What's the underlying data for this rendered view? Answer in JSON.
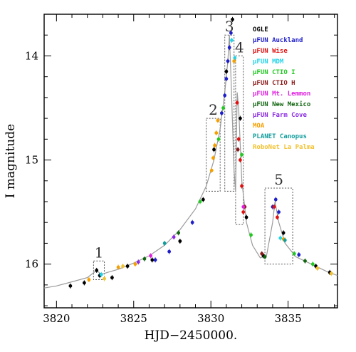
{
  "chart_data": {
    "type": "scatter",
    "title": "",
    "xlabel": "HJD−2450000.",
    "ylabel": "I magnitude",
    "xlim": [
      3819.2,
      3838.2
    ],
    "ylim": [
      16.42,
      13.6
    ],
    "y_inverted": true,
    "x_ticks": [
      3820,
      3825,
      3830,
      3835
    ],
    "y_ticks": [
      14,
      15,
      16
    ],
    "grid": false,
    "legend_position": "top-right",
    "legend": [
      {
        "name": "OGLE",
        "prefix": "",
        "color": "#000000"
      },
      {
        "name": "Auckland",
        "prefix": "μFUN ",
        "color": "#1f1fc8"
      },
      {
        "name": "Wise",
        "prefix": "μFUN ",
        "color": "#e01010"
      },
      {
        "name": "MDM",
        "prefix": "μFUN ",
        "color": "#22d3e8"
      },
      {
        "name": "CTIO I",
        "prefix": "μFUN ",
        "color": "#22c922"
      },
      {
        "name": "CTIO H",
        "prefix": "μFUN ",
        "color": "#8b1a1a"
      },
      {
        "name": "Mt. Lemmon",
        "prefix": "μFUN ",
        "color": "#e020e0"
      },
      {
        "name": "New Mexico",
        "prefix": "μFUN ",
        "color": "#116611"
      },
      {
        "name": "Farm Cove",
        "prefix": "μFUN ",
        "color": "#8a2be2"
      },
      {
        "name": "MOA",
        "prefix": "",
        "color": "#f5a000"
      },
      {
        "name": "PLANET Canopus",
        "prefix": "",
        "color": "#109c9c"
      },
      {
        "name": "RoboNet La Palma",
        "prefix": "",
        "color": "#f2c230"
      }
    ],
    "model_curve": [
      [
        3819.2,
        16.23
      ],
      [
        3820,
        16.21
      ],
      [
        3821,
        16.17
      ],
      [
        3822,
        16.13
      ],
      [
        3822.6,
        16.06
      ],
      [
        3822.9,
        16.1
      ],
      [
        3823.3,
        16.08
      ],
      [
        3824,
        16.05
      ],
      [
        3825,
        15.99
      ],
      [
        3826,
        15.92
      ],
      [
        3827,
        15.82
      ],
      [
        3828,
        15.67
      ],
      [
        3829,
        15.47
      ],
      [
        3829.7,
        15.25
      ],
      [
        3830.2,
        15.0
      ],
      [
        3830.6,
        14.7
      ],
      [
        3830.9,
        14.35
      ],
      [
        3831.1,
        14.05
      ],
      [
        3831.2,
        13.8
      ],
      [
        3831.3,
        14.2
      ],
      [
        3831.5,
        15.1
      ],
      [
        3831.6,
        15.3
      ],
      [
        3831.7,
        14.35
      ],
      [
        3831.8,
        14.5
      ],
      [
        3832.0,
        15.2
      ],
      [
        3832.3,
        15.6
      ],
      [
        3832.7,
        15.82
      ],
      [
        3833.2,
        15.94
      ],
      [
        3833.6,
        15.92
      ],
      [
        3834.0,
        15.6
      ],
      [
        3834.15,
        15.4
      ],
      [
        3834.4,
        15.6
      ],
      [
        3834.8,
        15.8
      ],
      [
        3835.5,
        15.93
      ],
      [
        3836.5,
        16.0
      ],
      [
        3837.5,
        16.07
      ],
      [
        3838.2,
        16.11
      ]
    ],
    "series": [
      {
        "name": "OGLE",
        "x": [
          3820.9,
          3821.8,
          3822.6,
          3822.8,
          3823.6,
          3824.6,
          3826.2,
          3828.0,
          3829.5,
          3830.2,
          3831.0,
          3831.4,
          3831.9,
          3832.3,
          3833.4,
          3834.7,
          3836.8,
          3837.7
        ],
        "y": [
          16.21,
          16.18,
          16.06,
          16.11,
          16.13,
          16.02,
          15.96,
          15.78,
          15.38,
          14.9,
          14.15,
          13.65,
          14.6,
          15.55,
          15.92,
          15.7,
          16.02,
          16.08
        ]
      },
      {
        "name": "Auckland",
        "x": [
          3826.4,
          3827.3,
          3828.8,
          3830.7,
          3830.9,
          3831.0,
          3831.1,
          3831.2,
          3831.3,
          3834.0,
          3834.2,
          3834.4,
          3835.7
        ],
        "y": [
          15.96,
          15.88,
          15.6,
          14.55,
          14.38,
          14.22,
          14.05,
          13.92,
          13.78,
          15.45,
          15.38,
          15.5,
          15.91
        ]
      },
      {
        "name": "Wise",
        "x": [
          3831.7,
          3831.8,
          3831.9,
          3832.0,
          3832.1,
          3834.1,
          3834.3
        ],
        "y": [
          14.45,
          14.8,
          15.0,
          15.25,
          15.5,
          15.45,
          15.55
        ]
      },
      {
        "name": "MDM",
        "x": [
          3822.9,
          3831.35,
          3831.55,
          3834.5
        ],
        "y": [
          16.1,
          13.85,
          14.02,
          15.75
        ]
      },
      {
        "name": "CTIO I",
        "x": [
          3829.3,
          3830.5,
          3830.8,
          3832.0,
          3832.6,
          3835.4,
          3836.6
        ],
        "y": [
          15.4,
          14.8,
          14.5,
          14.95,
          15.72,
          15.9,
          16.0
        ]
      },
      {
        "name": "CTIO H",
        "x": [
          3831.75,
          3832.2,
          3833.3
        ],
        "y": [
          14.9,
          15.45,
          15.9
        ]
      },
      {
        "name": "Mt. Lemmon",
        "x": [
          3826.1,
          3832.1
        ],
        "y": [
          15.92,
          15.45
        ]
      },
      {
        "name": "New Mexico",
        "x": [
          3825.7,
          3827.9,
          3833.5,
          3836.1
        ],
        "y": [
          15.95,
          15.7,
          15.93,
          15.97
        ]
      },
      {
        "name": "Farm Cove",
        "x": [
          3825.3,
          3827.6
        ],
        "y": [
          15.98,
          15.74
        ]
      },
      {
        "name": "MOA",
        "x": [
          3822.1,
          3824.0,
          3825.1,
          3830.05,
          3830.15,
          3830.25,
          3830.35,
          3830.45,
          3831.5,
          3834.7
        ],
        "y": [
          16.15,
          16.03,
          16.0,
          15.1,
          14.98,
          14.86,
          14.74,
          14.62,
          14.05,
          15.76
        ]
      },
      {
        "name": "PLANET Canopus",
        "x": [
          3827.0,
          3834.8
        ],
        "y": [
          15.8,
          15.77
        ]
      },
      {
        "name": "RoboNet La Palma",
        "x": [
          3823.1,
          3824.3,
          3836.9,
          3837.8
        ],
        "y": [
          16.14,
          16.02,
          16.04,
          16.09
        ]
      }
    ],
    "boxes": [
      {
        "label": "1",
        "x": [
          3822.4,
          3823.1
        ],
        "y": [
          16.15,
          15.97
        ]
      },
      {
        "label": "2",
        "x": [
          3829.7,
          3830.6
        ],
        "y": [
          15.3,
          14.6
        ]
      },
      {
        "label": "3",
        "x": [
          3830.9,
          3831.5
        ],
        "y": [
          15.3,
          13.8
        ]
      },
      {
        "label": "4",
        "x": [
          3831.6,
          3832.1
        ],
        "y": [
          15.62,
          14.0
        ]
      },
      {
        "label": "5",
        "x": [
          3833.5,
          3835.3
        ],
        "y": [
          16.0,
          15.27
        ]
      }
    ]
  }
}
